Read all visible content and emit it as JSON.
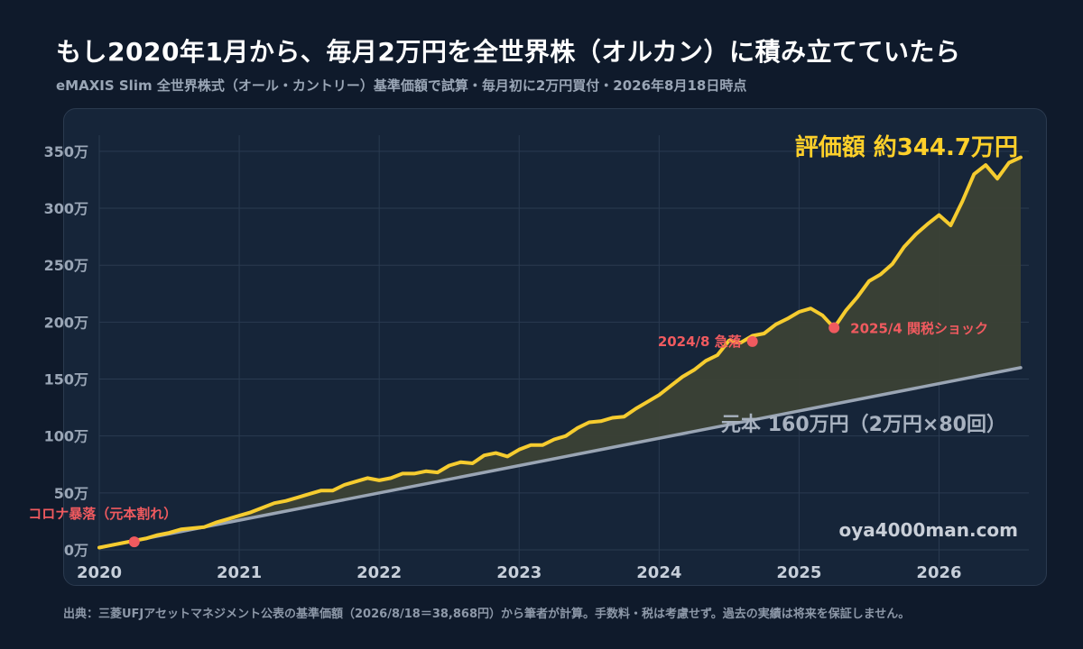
{
  "title": "もし2020年1月から、毎月2万円を全世界株（オルカン）に積み立てていたら",
  "subtitle": "eMAXIS Slim 全世界株式（オール・カントリー）基準価額で試算・毎月初に2万円買付・2026年8月18日時点",
  "footer": "出典：三菱UFJアセットマネジメント公表の基準価額（2026/8/18＝38,868円）から筆者が計算。手数料・税は考慮せず。過去の実績は将来を保証しません。",
  "watermark": "oya4000man.com",
  "colors": {
    "background": "#0f1a2b",
    "panel": "#162539",
    "valuation_line": "#f6cc2f",
    "principal_line": "#9aa5b4",
    "fill": "#3b4135",
    "annotation": "#f05a5f"
  },
  "chart_data": {
    "type": "line",
    "title": "評価額 約344.7万円",
    "xlabel": "",
    "ylabel": "",
    "unit": "万円",
    "xlim": [
      "2020-01",
      "2026-08"
    ],
    "ylim": [
      0,
      380
    ],
    "y_ticks": [
      {
        "value": 0,
        "label": "0万"
      },
      {
        "value": 50,
        "label": "50万"
      },
      {
        "value": 100,
        "label": "100万"
      },
      {
        "value": 150,
        "label": "150万"
      },
      {
        "value": 200,
        "label": "200万"
      },
      {
        "value": 250,
        "label": "250万"
      },
      {
        "value": 300,
        "label": "300万"
      },
      {
        "value": 350,
        "label": "350万"
      }
    ],
    "x_ticks": [
      {
        "value": "2020-01",
        "label": "2020"
      },
      {
        "value": "2021-01",
        "label": "2021"
      },
      {
        "value": "2022-01",
        "label": "2022"
      },
      {
        "value": "2023-01",
        "label": "2023"
      },
      {
        "value": "2024-01",
        "label": "2024"
      },
      {
        "value": "2025-01",
        "label": "2025"
      },
      {
        "value": "2026-01",
        "label": "2026"
      }
    ],
    "grid": true,
    "series": [
      {
        "name": "評価額",
        "label": "評価額 約344.7万円",
        "points": [
          [
            "2020-01",
            2
          ],
          [
            "2020-02",
            4
          ],
          [
            "2020-03",
            6
          ],
          [
            "2020-04",
            8
          ],
          [
            "2020-05",
            10
          ],
          [
            "2020-06",
            13
          ],
          [
            "2020-07",
            15
          ],
          [
            "2020-08",
            18
          ],
          [
            "2020-09",
            19
          ],
          [
            "2020-10",
            20
          ],
          [
            "2020-11",
            24
          ],
          [
            "2020-12",
            27
          ],
          [
            "2021-01",
            30
          ],
          [
            "2021-02",
            33
          ],
          [
            "2021-03",
            37
          ],
          [
            "2021-04",
            41
          ],
          [
            "2021-05",
            43
          ],
          [
            "2021-06",
            46
          ],
          [
            "2021-07",
            49
          ],
          [
            "2021-08",
            52
          ],
          [
            "2021-09",
            52
          ],
          [
            "2021-10",
            57
          ],
          [
            "2021-11",
            60
          ],
          [
            "2021-12",
            63
          ],
          [
            "2022-01",
            61
          ],
          [
            "2022-02",
            63
          ],
          [
            "2022-03",
            67
          ],
          [
            "2022-04",
            67
          ],
          [
            "2022-05",
            69
          ],
          [
            "2022-06",
            68
          ],
          [
            "2022-07",
            74
          ],
          [
            "2022-08",
            77
          ],
          [
            "2022-09",
            76
          ],
          [
            "2022-10",
            83
          ],
          [
            "2022-11",
            85
          ],
          [
            "2022-12",
            82
          ],
          [
            "2023-01",
            88
          ],
          [
            "2023-02",
            92
          ],
          [
            "2023-03",
            92
          ],
          [
            "2023-04",
            97
          ],
          [
            "2023-05",
            100
          ],
          [
            "2023-06",
            107
          ],
          [
            "2023-07",
            112
          ],
          [
            "2023-08",
            113
          ],
          [
            "2023-09",
            116
          ],
          [
            "2023-10",
            117
          ],
          [
            "2023-11",
            124
          ],
          [
            "2023-12",
            130
          ],
          [
            "2024-01",
            136
          ],
          [
            "2024-02",
            144
          ],
          [
            "2024-03",
            152
          ],
          [
            "2024-04",
            158
          ],
          [
            "2024-05",
            166
          ],
          [
            "2024-06",
            171
          ],
          [
            "2024-07",
            184
          ],
          [
            "2024-08",
            182
          ],
          [
            "2024-09",
            188
          ],
          [
            "2024-10",
            190
          ],
          [
            "2024-11",
            198
          ],
          [
            "2024-12",
            203
          ],
          [
            "2025-01",
            209
          ],
          [
            "2025-02",
            212
          ],
          [
            "2025-03",
            206
          ],
          [
            "2025-04",
            195
          ],
          [
            "2025-05",
            210
          ],
          [
            "2025-06",
            222
          ],
          [
            "2025-07",
            236
          ],
          [
            "2025-08",
            242
          ],
          [
            "2025-09",
            251
          ],
          [
            "2025-10",
            266
          ],
          [
            "2025-11",
            277
          ],
          [
            "2025-12",
            286
          ],
          [
            "2026-01",
            294
          ],
          [
            "2026-02",
            285
          ],
          [
            "2026-03",
            306
          ],
          [
            "2026-04",
            330
          ],
          [
            "2026-05",
            338
          ],
          [
            "2026-06",
            326
          ],
          [
            "2026-07",
            340
          ],
          [
            "2026-08",
            344.7
          ]
        ]
      },
      {
        "name": "元本",
        "label": "元本 160万円（2万円×80回）",
        "points": [
          [
            "2020-01",
            2
          ],
          [
            "2026-08",
            160
          ]
        ]
      }
    ],
    "annotations": [
      {
        "label": "コロナ暴落（元本割れ）",
        "date": "2020-04",
        "value": 7
      },
      {
        "label": "2024/8 急落",
        "date": "2024-09",
        "value": 183
      },
      {
        "label": "2025/4 関税ショック",
        "date": "2025-04",
        "value": 195
      }
    ]
  }
}
